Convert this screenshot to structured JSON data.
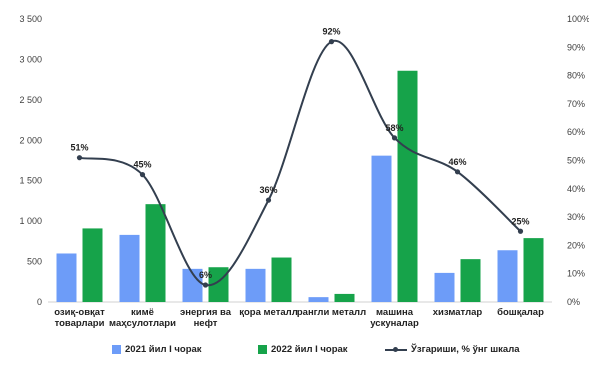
{
  "chart_data": {
    "type": "bar",
    "categories": [
      [
        "озиқ-овқат",
        "товарлари"
      ],
      [
        "кимё",
        "маҳсулотлари"
      ],
      [
        "энергия ва",
        "нефт"
      ],
      [
        "қора металл"
      ],
      [
        "рангли металл"
      ],
      [
        "машина",
        "ускуналар"
      ],
      [
        "хизматлар"
      ],
      [
        "бошқалар"
      ]
    ],
    "series": [
      {
        "name": "2021 йил I чорак",
        "type": "bar",
        "axis": "left",
        "color": "#6d9cf8",
        "values": [
          600,
          830,
          410,
          410,
          60,
          1810,
          360,
          640
        ]
      },
      {
        "name": "2022 йил I чорак",
        "type": "bar",
        "axis": "left",
        "color": "#16a34a",
        "values": [
          910,
          1210,
          430,
          550,
          100,
          2860,
          530,
          790
        ]
      },
      {
        "name": "Ўзгариши, % ўнг шкала",
        "type": "line",
        "axis": "right",
        "color": "#333f4f",
        "values": [
          51,
          45,
          6,
          36,
          92,
          58,
          46,
          25
        ],
        "labels": [
          "51%",
          "45%",
          "6%",
          "36%",
          "92%",
          "58%",
          "46%",
          "25%"
        ]
      }
    ],
    "y_left": {
      "min": 0,
      "max": 3500,
      "ticks": [
        0,
        500,
        1000,
        1500,
        2000,
        2500,
        3000,
        3500
      ],
      "tick_labels": [
        "0",
        "500",
        "1 000",
        "1 500",
        "2 000",
        "2 500",
        "3 000",
        "3 500"
      ]
    },
    "y_right": {
      "min": 0,
      "max": 100,
      "ticks": [
        0,
        10,
        20,
        30,
        40,
        50,
        60,
        70,
        80,
        90,
        100
      ],
      "tick_labels": [
        "0%",
        "10%",
        "20%",
        "30%",
        "40%",
        "50%",
        "60%",
        "70%",
        "80%",
        "90%",
        "100%"
      ]
    },
    "grid": false,
    "legend_position": "bottom"
  }
}
